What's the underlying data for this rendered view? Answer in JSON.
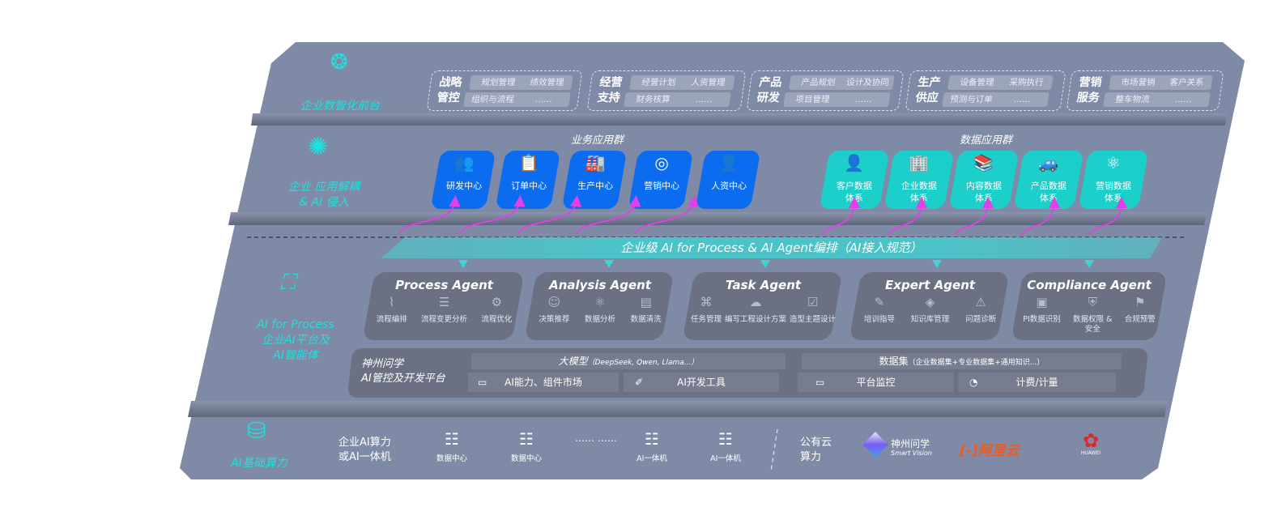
{
  "layers": {
    "front": "企业数智化前台",
    "apps": "企业 应用解耦\n& AI 侵入",
    "ai": [
      "AI for Process",
      "企业AI平台及",
      "AI智能体"
    ],
    "infra": "AI基础算力"
  },
  "front_groups": [
    {
      "title": "战略管控",
      "items": [
        "规划管理",
        "绩效管理",
        "组织与流程",
        "……"
      ]
    },
    {
      "title": "经营支持",
      "items": [
        "经营计划",
        "人资管理",
        "财务核算",
        "……"
      ]
    },
    {
      "title": "产品研发",
      "items": [
        "产品规划",
        "设计及协同",
        "项目管理",
        "……"
      ]
    },
    {
      "title": "生产供应",
      "items": [
        "设备管理",
        "采购执行",
        "预测与订单",
        "……"
      ]
    },
    {
      "title": "营销服务",
      "items": [
        "市场营销",
        "客户关系",
        "整车物流",
        "……"
      ]
    }
  ],
  "business_apps": {
    "title": "业务应用群",
    "items": [
      {
        "label": "研发中心",
        "icon": "people-icon"
      },
      {
        "label": "订单中心",
        "icon": "clipboard-icon"
      },
      {
        "label": "生产中心",
        "icon": "factory-icon"
      },
      {
        "label": "营销中心",
        "icon": "target-icon"
      },
      {
        "label": "人资中心",
        "icon": "person-icon"
      }
    ]
  },
  "data_apps": {
    "title": "数据应用群",
    "items": [
      {
        "label": "客户数据体系",
        "icon": "user-icon"
      },
      {
        "label": "企业数据体系",
        "icon": "building-icon"
      },
      {
        "label": "内容数据体系",
        "icon": "books-icon"
      },
      {
        "label": "产品数据体系",
        "icon": "car-icon"
      },
      {
        "label": "营销数据体系",
        "icon": "atom-icon"
      }
    ]
  },
  "banner": "企业级 AI for Process & AI Agent编排（AI接入规范）",
  "agents": [
    {
      "name": "Process Agent",
      "items": [
        "流程编排",
        "流程变更分析",
        "流程优化"
      ]
    },
    {
      "name": "Analysis Agent",
      "items": [
        "决策推荐",
        "数据分析",
        "数据清洗"
      ]
    },
    {
      "name": "Task Agent",
      "items": [
        "任务管理",
        "编写工程设计方案",
        "造型主题设计"
      ]
    },
    {
      "name": "Expert Agent",
      "items": [
        "培训指导",
        "知识库管理",
        "问题诊断"
      ]
    },
    {
      "name": "Compliance Agent",
      "items": [
        "PI数据识别",
        "数据权限 & 安全",
        "合规预警"
      ]
    }
  ],
  "platform": {
    "name": "神州问学\nAI管控及开发平台",
    "model_title": "大模型",
    "model_note": "（DeepSeek, Qwen, Llama...）",
    "model_items": [
      "AI能力、组件市场",
      "AI开发工具"
    ],
    "data_title": "数据集",
    "data_note": "（企业数据集+专业数据集+通用知识...）",
    "data_items": [
      "平台监控",
      "计费/计量"
    ]
  },
  "infra": {
    "enterprise": "企业AI算力\n或AI一体机",
    "servers": [
      "数据中心",
      "数据中心",
      "AI一体机",
      "AI一体机"
    ],
    "ellipsis": "…… ……",
    "public": "公有云\n算力",
    "logos": {
      "shenzhou": "神州问学",
      "shenzhou_en": "Smart Vision",
      "aliyun": "阿里云",
      "huawei": "HUAWEI"
    }
  },
  "colors": {
    "panel": "#7f8ba6",
    "blue_tile": "#0b6cf0",
    "cyan_tile": "#1ccfca",
    "accent": "#1fe0dc",
    "arrow": "#e040e8",
    "agent_card": "#6b7183"
  }
}
